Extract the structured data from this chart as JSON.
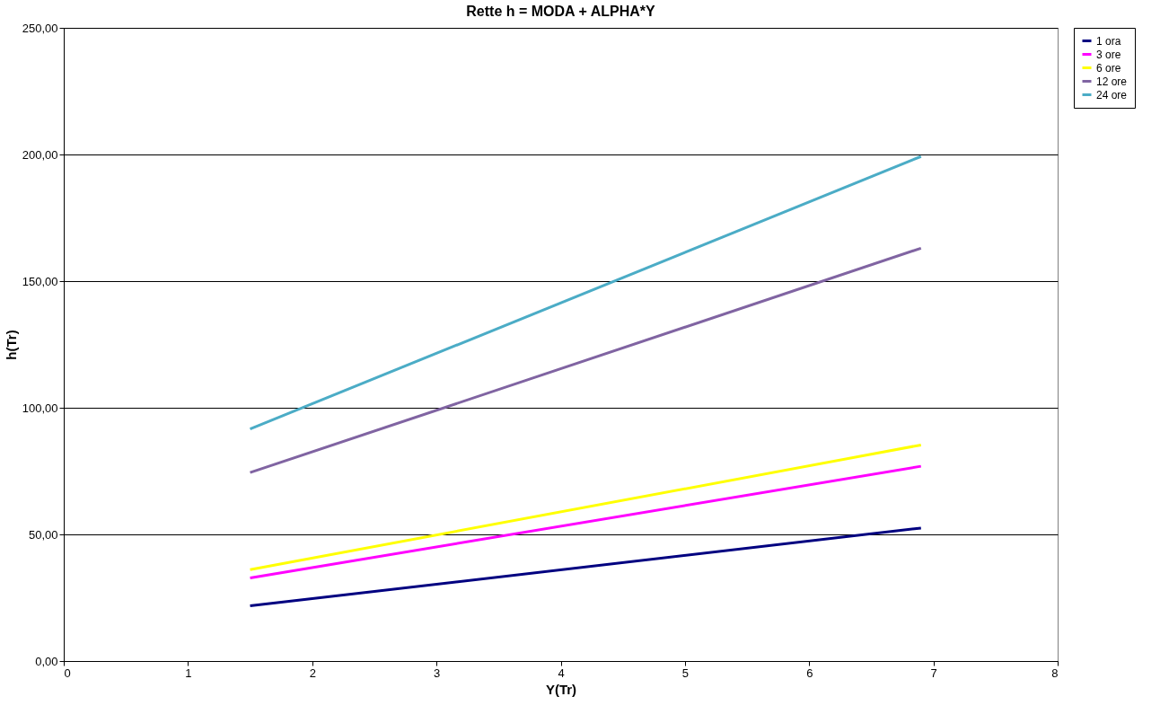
{
  "chart_data": {
    "type": "line",
    "title": "Rette h = MODA + ALPHA*Y",
    "xlabel": "Y(Tr)",
    "ylabel": "h(Tr)",
    "x": [
      1.5,
      6.9
    ],
    "series": [
      {
        "name": "1 ora",
        "color": "#000080",
        "values": [
          21.8,
          52.5
        ]
      },
      {
        "name": "3 ore",
        "color": "#ff00ff",
        "values": [
          32.8,
          76.9
        ]
      },
      {
        "name": "6 ore",
        "color": "#ffff00",
        "values": [
          36.1,
          85.3
        ]
      },
      {
        "name": "12 ore",
        "color": "#8064a2",
        "values": [
          74.4,
          163
        ]
      },
      {
        "name": "24 ore",
        "color": "#4bacc6",
        "values": [
          91.6,
          199.2
        ]
      }
    ],
    "xlim": [
      0,
      8
    ],
    "xticks": [
      0,
      1,
      2,
      3,
      4,
      5,
      6,
      7,
      8
    ],
    "ylim": [
      0,
      250
    ],
    "yticks": [
      {
        "value": 0,
        "label": "0,00"
      },
      {
        "value": 50,
        "label": "50,00"
      },
      {
        "value": 100,
        "label": "100,00"
      },
      {
        "value": 150,
        "label": "150,00"
      },
      {
        "value": 200,
        "label": "200,00"
      },
      {
        "value": 250,
        "label": "250,00"
      }
    ],
    "grid": "y",
    "legend": "right",
    "marker": "none",
    "line_style": "solid"
  }
}
